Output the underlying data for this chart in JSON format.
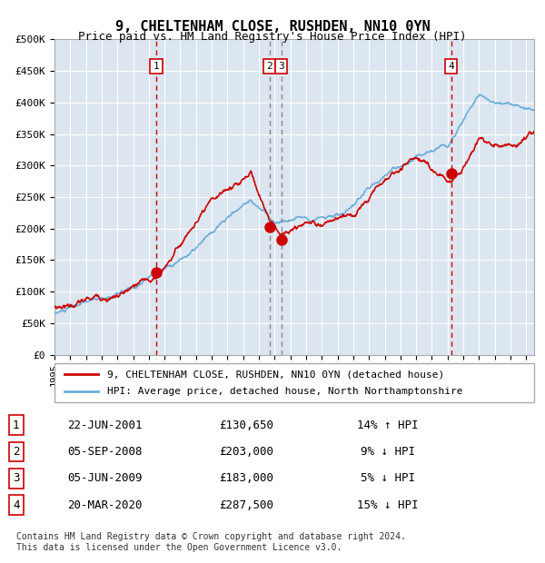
{
  "title": "9, CHELTENHAM CLOSE, RUSHDEN, NN10 0YN",
  "subtitle": "Price paid vs. HM Land Registry's House Price Index (HPI)",
  "ylabel": "",
  "bg_color": "#dce6f1",
  "plot_bg_color": "#dce6f1",
  "grid_color": "#ffffff",
  "sale_color": "#cc0000",
  "hpi_color": "#6baed6",
  "ylim": [
    0,
    500000
  ],
  "yticks": [
    0,
    50000,
    100000,
    150000,
    200000,
    250000,
    300000,
    350000,
    400000,
    450000,
    500000
  ],
  "ytick_labels": [
    "£0",
    "£50K",
    "£100K",
    "£150K",
    "£200K",
    "£250K",
    "£300K",
    "£350K",
    "£400K",
    "£450K",
    "£500K"
  ],
  "xlim_start": 1995.0,
  "xlim_end": 2025.5,
  "xticks": [
    1995,
    1996,
    1997,
    1998,
    1999,
    2000,
    2001,
    2002,
    2003,
    2004,
    2005,
    2006,
    2007,
    2008,
    2009,
    2010,
    2011,
    2012,
    2013,
    2014,
    2015,
    2016,
    2017,
    2018,
    2019,
    2020,
    2021,
    2022,
    2023,
    2024,
    2025
  ],
  "sale_points": [
    {
      "year": 2001.47,
      "price": 130650,
      "label": "1"
    },
    {
      "year": 2008.67,
      "price": 203000,
      "label": "2"
    },
    {
      "year": 2009.42,
      "price": 183000,
      "label": "3"
    },
    {
      "year": 2020.22,
      "price": 287500,
      "label": "4"
    }
  ],
  "vline_color": "#cc0000",
  "vline2_color": "#555555",
  "legend_sale_label": "9, CHELTENHAM CLOSE, RUSHDEN, NN10 0YN (detached house)",
  "legend_hpi_label": "HPI: Average price, detached house, North Northamptonshire",
  "table_rows": [
    {
      "num": "1",
      "date": "22-JUN-2001",
      "price": "£130,650",
      "hpi": "14% ↑ HPI"
    },
    {
      "num": "2",
      "date": "05-SEP-2008",
      "price": "£203,000",
      "hpi": "9% ↓ HPI"
    },
    {
      "num": "3",
      "date": "05-JUN-2009",
      "price": "£183,000",
      "hpi": "5% ↓ HPI"
    },
    {
      "num": "4",
      "date": "20-MAR-2020",
      "price": "£287,500",
      "hpi": "15% ↓ HPI"
    }
  ],
  "footnote": "Contains HM Land Registry data © Crown copyright and database right 2024.\nThis data is licensed under the Open Government Licence v3.0."
}
